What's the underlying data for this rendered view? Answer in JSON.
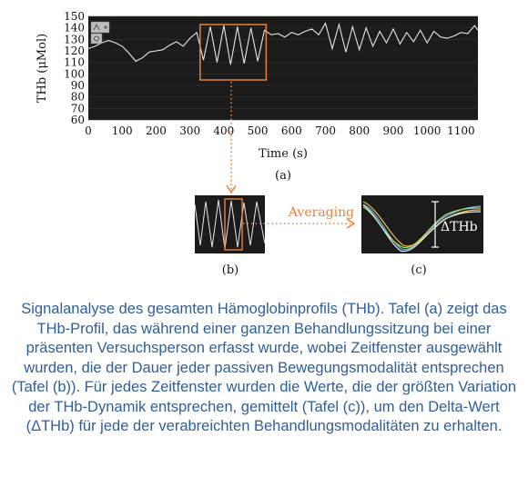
{
  "chart_data": [
    {
      "type": "line",
      "panel_label": "(a)",
      "xlabel": "Time (s)",
      "ylabel": "THb (μMol)",
      "xlim": [
        0,
        1150
      ],
      "ylim": [
        60,
        150
      ],
      "xticks": [
        0,
        100,
        200,
        300,
        400,
        500,
        600,
        700,
        800,
        900,
        1000,
        1100
      ],
      "yticks": [
        60,
        70,
        80,
        90,
        100,
        110,
        120,
        130,
        140,
        150
      ],
      "series": [
        {
          "x": [
            0,
            20,
            40,
            60,
            80,
            100,
            120,
            140,
            160,
            180,
            200,
            220,
            240,
            260,
            280,
            300,
            320,
            340,
            360,
            380,
            400,
            420,
            440,
            460,
            480,
            500,
            520,
            540,
            560,
            580,
            600,
            620,
            640,
            660,
            680,
            700,
            720,
            740,
            760,
            780,
            800,
            820,
            840,
            860,
            880,
            900,
            920,
            940,
            960,
            980,
            1000,
            1020,
            1040,
            1060,
            1080,
            1100,
            1120,
            1140,
            1150
          ],
          "y": [
            122,
            124,
            127,
            129,
            127,
            124,
            118,
            111,
            114,
            119,
            120,
            121,
            125,
            128,
            124,
            131,
            136,
            112,
            141,
            110,
            142,
            108,
            141,
            109,
            140,
            111,
            138,
            134,
            135,
            132,
            136,
            134,
            137,
            139,
            134,
            144,
            122,
            143,
            119,
            141,
            121,
            140,
            124,
            137,
            127,
            139,
            126,
            136,
            128,
            138,
            127,
            137,
            132,
            131,
            133,
            136,
            135,
            142,
            138
          ]
        }
      ],
      "roi_window": [
        330,
        525
      ]
    }
  ],
  "figure": {
    "panel_b_label": "(b)",
    "panel_c_label": "(c)",
    "arrow_label": "Averaging",
    "delta_label": "ΔTHb"
  },
  "colors": {
    "plot_background": "#1b1b1b",
    "trace": "#e6e6e6",
    "highlight": "#e8823a",
    "caption": "#2f5f9a"
  },
  "caption": "Signalanalyse des gesamten Hämoglobinprofils (THb). Tafel (a) zeigt das THb-Profil, das während einer ganzen Behandlungssitzung bei einer präsenten Versuchsperson erfasst wurde, wobei Zeitfenster ausgewählt wurden, die der Dauer jeder passiven Bewegungsmodalität entsprechen (Tafel (b)).  Für jedes Zeitfenster wurden die Werte, die der größten Variation der THb-Dynamik entsprechen, gemittelt (Tafel (c)), um den Delta-Wert (ΔTHb) für jede der verabreichten Behandlungsmodalitäten zu erhalten."
}
